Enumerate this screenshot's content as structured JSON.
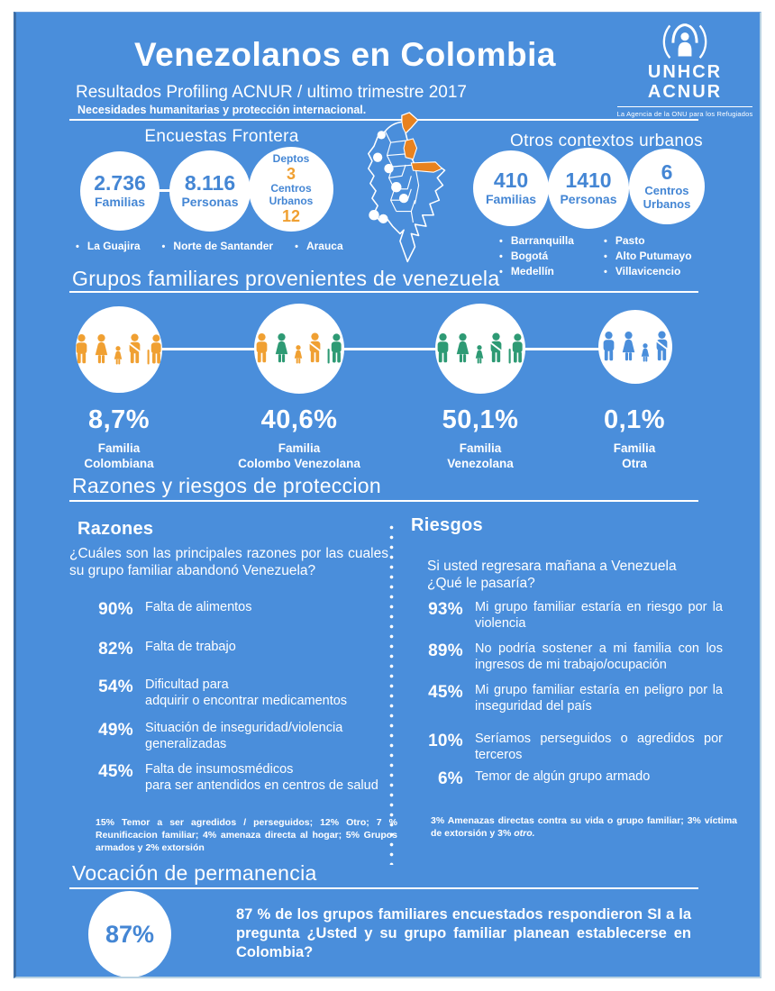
{
  "colors": {
    "background_blue": "#4a8edb",
    "stat_text_blue": "#4486d4",
    "accent_orange": "#f0a032",
    "map_highlight_orange": "#e8821f",
    "family_teal": "#2e9a74",
    "family_blue": "#4a8edb",
    "text_white": "#ffffff"
  },
  "header": {
    "title": "Venezolanos en Colombia",
    "subtitle": "Resultados Profiling ACNUR  / ultimo trimestre 2017",
    "tagline": "Necesidades humanitarias y protección internacional."
  },
  "logo": {
    "line1": "UNHCR",
    "line2": "ACNUR",
    "tagline": "La Agencia de la ONU para los Refugiados"
  },
  "frontera": {
    "title": "Encuestas Frontera",
    "circle1": {
      "value": "2.736",
      "label": "Familias"
    },
    "circle2": {
      "value": "8.116",
      "label": "Personas"
    },
    "circle3": {
      "label1": "Deptos",
      "value1": "3",
      "label2": "Centros Urbanos",
      "value2": "12"
    },
    "bullets": [
      "La Guajira",
      "Norte de Santander",
      "Arauca"
    ]
  },
  "urbanos": {
    "title": "Otros contextos urbanos",
    "circle1": {
      "value": "410",
      "label": "Familias"
    },
    "circle2": {
      "value": "1410",
      "label": "Personas"
    },
    "circle3": {
      "value": "6",
      "label": "Centros\nUrbanos"
    },
    "bullets_col1": [
      "Barranquilla",
      "Bogotá",
      "Medellín"
    ],
    "bullets_col2": [
      "Pasto",
      "Alto Putumayo",
      "Villavicencio"
    ]
  },
  "grupos": {
    "heading": "Grupos familiares provenientes de venezuela",
    "items": [
      {
        "pct": "8,7%",
        "label": "Familia\nColombiana",
        "figures": [
          "man",
          "woman",
          "girl",
          "adult-baby",
          "elder"
        ],
        "colors": [
          "#f0a032",
          "#f0a032",
          "#f0a032",
          "#f0a032",
          "#f0a032"
        ]
      },
      {
        "pct": "40,6%",
        "label": "Familia\nColombo Venezolana",
        "figures": [
          "man",
          "woman",
          "girl",
          "adult-baby",
          "elder"
        ],
        "colors": [
          "#f0a032",
          "#2e9a74",
          "#f0a032",
          "#f0a032",
          "#2e9a74"
        ]
      },
      {
        "pct": "50,1%",
        "label": "Familia\nVenezolana",
        "figures": [
          "man",
          "woman",
          "girl",
          "adult-baby",
          "elder"
        ],
        "colors": [
          "#2e9a74",
          "#2e9a74",
          "#2e9a74",
          "#2e9a74",
          "#2e9a74"
        ]
      },
      {
        "pct": "0,1%",
        "label": "Familia\nOtra",
        "figures": [
          "man",
          "woman",
          "girl",
          "adult-baby"
        ],
        "colors": [
          "#4a8edb",
          "#4a8edb",
          "#4a8edb",
          "#4a8edb"
        ]
      }
    ]
  },
  "proteccion": {
    "heading": "Razones y riesgos de proteccion",
    "razones": {
      "title": "Razones",
      "question": "¿Cuáles  son las principales razones por las cuales su grupo familiar abandonó Venezuela?",
      "items": [
        {
          "pct": "90%",
          "text": "Falta de alimentos"
        },
        {
          "pct": "82%",
          "text": "Falta de trabajo"
        },
        {
          "pct": "54%",
          "text": "Dificultad para\nadquirir o encontrar medicamentos"
        },
        {
          "pct": "49%",
          "text": "Situación de inseguridad/violencia\ngeneralizadas"
        },
        {
          "pct": "45%",
          "text": "Falta de insumosmédicos\npara  ser antendidos en centros de salud"
        }
      ],
      "footnote": "15% Temor a ser agredidos / perseguidos; 12% Otro;  7 % Reunificacion familiar; 4% amenaza directa al hogar; 5% Grupos armados  y 2% extorsión"
    },
    "riesgos": {
      "title": "Riesgos",
      "question": "Si usted regresara mañana  a Venezuela\n¿Qué le pasaría?",
      "items": [
        {
          "pct": "93%",
          "text": "Mi grupo familiar estaría en riesgo por la violencia"
        },
        {
          "pct": "89%",
          "text": "No podría sostener a mi familia con los ingresos de mi trabajo/ocupación"
        },
        {
          "pct": "45%",
          "text": "Mi  grupo familiar estaría en peligro por la inseguridad del país"
        },
        {
          "pct": "10%",
          "text": "Seríamos perseguidos o agredidos por terceros"
        },
        {
          "pct": "6%",
          "text": "Temor de algún grupo armado"
        }
      ],
      "footnote": "3% Amenazas directas contra su vida o grupo familiar; 3% víctima de extorsión y 3% ",
      "footnote_italic": "otro."
    }
  },
  "vocacion": {
    "heading": "Vocación de permanencia",
    "pct": "87%",
    "text": "87 % de los grupos familiares encuestados respondieron SI a la pregunta ¿Usted y su grupo familiar planean establecerse en Colombia?"
  }
}
